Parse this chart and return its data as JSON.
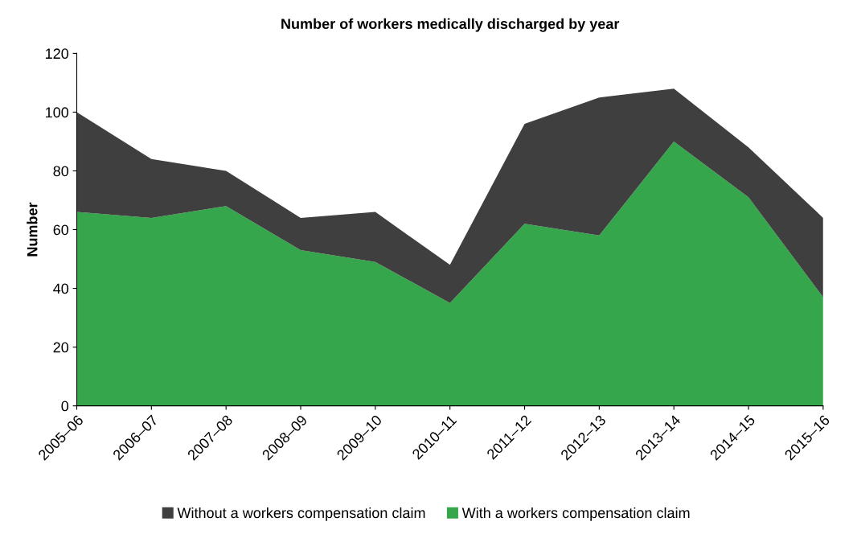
{
  "chart_data": {
    "type": "area",
    "stacked": true,
    "title": "Number of workers medically discharged by year",
    "ylabel": "Number",
    "categories": [
      "2005–06",
      "2006–07",
      "2007–08",
      "2008–09",
      "2009–10",
      "2010–11",
      "2011–12",
      "2012–13",
      "2013–14",
      "2014–15",
      "2015–16"
    ],
    "series": [
      {
        "name": "With a workers compensation claim",
        "color": "#35a64b",
        "values": [
          66,
          64,
          68,
          53,
          49,
          35,
          62,
          58,
          90,
          71,
          37
        ]
      },
      {
        "name": "Without a workers compensation claim",
        "color": "#3f3f3f",
        "values": [
          34,
          20,
          12,
          11,
          17,
          13,
          34,
          47,
          18,
          17,
          27
        ]
      }
    ],
    "ylim": [
      0,
      120
    ],
    "yticks": [
      0,
      20,
      40,
      60,
      80,
      100,
      120
    ],
    "grid": false,
    "legend": "bottom"
  }
}
